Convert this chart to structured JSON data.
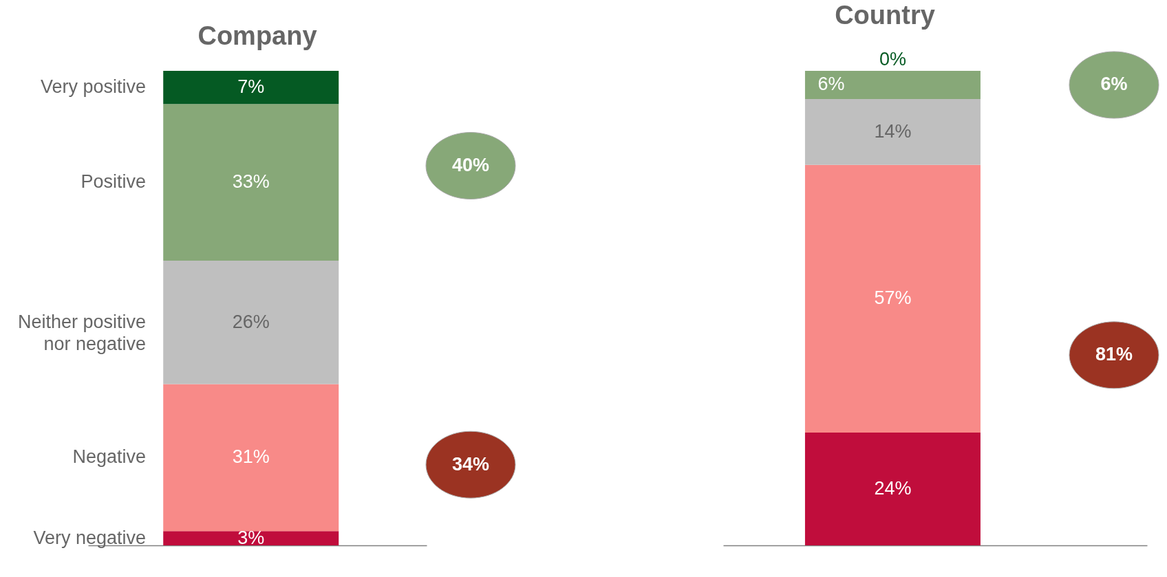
{
  "chart_data": [
    {
      "type": "bar",
      "title": "Company",
      "stacked": true,
      "categories": [
        null
      ],
      "ylim": [
        0,
        100
      ],
      "tick_labels": false,
      "series": [
        {
          "name": "Very negative",
          "color": "#c00d3c",
          "values": [
            3
          ],
          "value_labels": [
            "3%"
          ]
        },
        {
          "name": "Negative",
          "color": "#f88a88",
          "values": [
            31
          ],
          "value_labels": [
            "31%"
          ]
        },
        {
          "name": "Neither positive nor negative",
          "color": "#bfbfbf",
          "values": [
            26
          ],
          "value_labels": [
            "26%"
          ]
        },
        {
          "name": "Positive",
          "color": "#87a878",
          "values": [
            33
          ],
          "value_labels": [
            "33%"
          ]
        },
        {
          "name": "Very positive",
          "color": "#055a23",
          "values": [
            7
          ],
          "value_labels": [
            "7%"
          ]
        }
      ],
      "annotations": [
        "40%",
        "34%"
      ]
    },
    {
      "type": "bar",
      "title": "Country",
      "stacked": true,
      "categories": [
        null
      ],
      "ylim": [
        0,
        101
      ],
      "tick_labels": false,
      "series": [
        {
          "color": "#c00d3c",
          "values": [
            24
          ],
          "value_labels": [
            "24%"
          ]
        },
        {
          "color": "#f88a88",
          "values": [
            57
          ],
          "value_labels": [
            "57%"
          ]
        },
        {
          "color": "#bfbfbf",
          "values": [
            14
          ],
          "value_labels": [
            "14%"
          ]
        },
        {
          "color": "#87a878",
          "values": [
            6
          ],
          "value_labels": [
            "6%"
          ]
        },
        {
          "color": "#055a23",
          "values": [
            0
          ],
          "value_labels": [
            "0%"
          ]
        }
      ],
      "annotations": [
        "6%",
        "81%"
      ]
    }
  ]
}
